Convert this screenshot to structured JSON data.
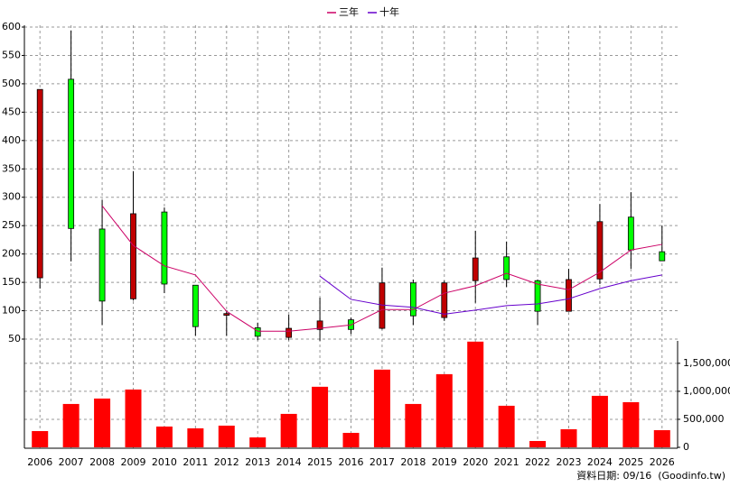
{
  "chart_data": {
    "type": "candlestick",
    "categories": [
      "2006",
      "2007",
      "2008",
      "2009",
      "2010",
      "2011",
      "2012",
      "2013",
      "2014",
      "2015",
      "2016",
      "2017",
      "2018",
      "2019",
      "2020",
      "2021",
      "2022",
      "2023",
      "2024",
      "2025",
      "2026"
    ],
    "open": [
      158,
      508,
      244,
      121,
      274,
      145,
      92,
      70,
      53,
      67,
      84,
      69,
      149,
      88,
      153,
      195,
      153,
      99,
      156,
      265,
      204
    ],
    "close": [
      490,
      245,
      117,
      271,
      147,
      72,
      95,
      55,
      69,
      82,
      67,
      149,
      91,
      149,
      193,
      155,
      99,
      155,
      257,
      207,
      188
    ],
    "high": [
      490,
      594,
      295,
      346,
      282,
      145,
      100,
      79,
      93,
      123,
      88,
      176,
      155,
      153,
      241,
      222,
      155,
      174,
      288,
      309,
      250
    ],
    "low": [
      139,
      187,
      75,
      118,
      131,
      56,
      56,
      48,
      48,
      47,
      59,
      67,
      75,
      82,
      114,
      142,
      75,
      99,
      147,
      174,
      188
    ],
    "up_color": "#c00000",
    "down_color": "#00ff00",
    "series": [
      {
        "name": "三年",
        "color": "#cc0066",
        "values": [
          null,
          null,
          285,
          215,
          179,
          163,
          99,
          64,
          64,
          69,
          75,
          102,
          102,
          131,
          144,
          166,
          147,
          137,
          168,
          207,
          217
        ]
      },
      {
        "name": "十年",
        "color": "#6600cc",
        "values": [
          null,
          null,
          null,
          null,
          null,
          null,
          null,
          null,
          null,
          161,
          120,
          110,
          106,
          94,
          101,
          109,
          112,
          121,
          139,
          153,
          163
        ]
      }
    ],
    "volume": {
      "axis": "y2",
      "color": "#ff0000",
      "values": [
        290000,
        774000,
        871000,
        1032000,
        371000,
        339000,
        387000,
        177000,
        597000,
        1081000,
        258000,
        1387000,
        774000,
        1306000,
        1887000,
        742000,
        113000,
        323000,
        919000,
        806000,
        306000
      ]
    },
    "ylim": [
      50,
      600
    ],
    "yticks": [
      50,
      100,
      150,
      200,
      250,
      300,
      350,
      400,
      450,
      500,
      550,
      600
    ],
    "y2lim": [
      0,
      1900000
    ],
    "y2ticks": [
      0,
      {
        "value": 500000,
        "label": "500,000"
      },
      {
        "value": 1000000,
        "label": "1,000,000"
      },
      {
        "value": 1500000,
        "label": "1,500,000"
      }
    ],
    "grid": true,
    "source": "資料日期: 09/16  (Goodinfo.tw)"
  }
}
